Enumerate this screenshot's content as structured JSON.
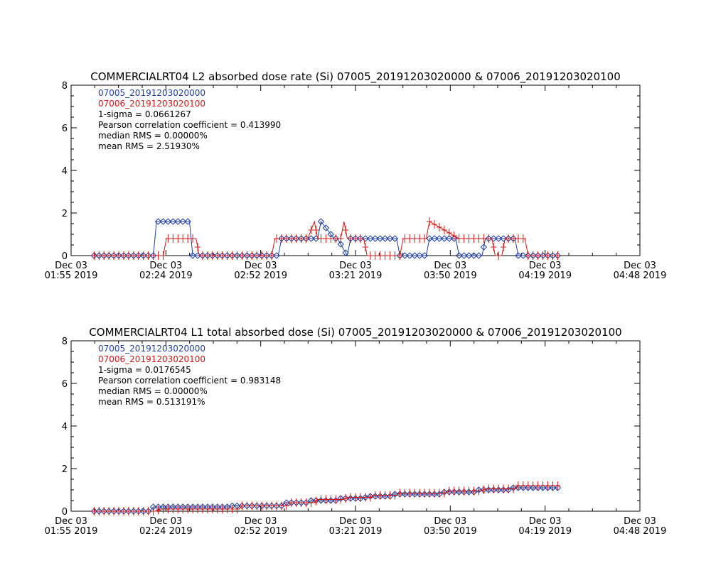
{
  "chart_data": [
    {
      "type": "line",
      "title": "COMMERCIALRT04 L2 absorbed dose rate (Si) 07005_20191203020000 & 07006_20191203020100",
      "xlabel": "",
      "ylabel": "",
      "xlim": [
        "2019-12-03 01:55",
        "2019-12-03 04:48"
      ],
      "ylim": [
        0,
        8
      ],
      "yticks": [
        "0",
        "2",
        "4",
        "6",
        "8"
      ],
      "xticks": [
        {
          "line1": "Dec 03",
          "line2": "01:55 2019"
        },
        {
          "line1": "Dec 03",
          "line2": "02:24 2019"
        },
        {
          "line1": "Dec 03",
          "line2": "02:52 2019"
        },
        {
          "line1": "Dec 03",
          "line2": "03:21 2019"
        },
        {
          "line1": "Dec 03",
          "line2": "03:50 2019"
        },
        {
          "line1": "Dec 03",
          "line2": "04:19 2019"
        },
        {
          "line1": "Dec 03",
          "line2": "04:48 2019"
        }
      ],
      "stats": [
        "1-sigma = 0.0661267",
        "Pearson correlation coefficient = 0.413990",
        "median RMS = 0.00000%",
        "mean RMS = 2.51930%"
      ],
      "series": [
        {
          "name": "07005_20191203020000",
          "color": "#1f3fa0",
          "marker": "diamond",
          "x": [
            "2019-12-03 02:02",
            "2019-12-03 02:20",
            "2019-12-03 02:21",
            "2019-12-03 02:31",
            "2019-12-03 02:32",
            "2019-12-03 02:58",
            "2019-12-03 02:59",
            "2019-12-03 03:10",
            "2019-12-03 03:11",
            "2019-12-03 03:15",
            "2019-12-03 03:16",
            "2019-12-03 03:19",
            "2019-12-03 03:20",
            "2019-12-03 03:34",
            "2019-12-03 03:35",
            "2019-12-03 03:43",
            "2019-12-03 03:44",
            "2019-12-03 03:52",
            "2019-12-03 03:53",
            "2019-12-03 04:00",
            "2019-12-03 04:01",
            "2019-12-03 04:10",
            "2019-12-03 04:11",
            "2019-12-03 04:23"
          ],
          "y": [
            0,
            0,
            1.6,
            1.6,
            0,
            0,
            0.8,
            0.8,
            1.6,
            0.8,
            0.8,
            0,
            0.8,
            0.8,
            0,
            0,
            0.8,
            0.8,
            0,
            0,
            0.8,
            0.8,
            0,
            0
          ]
        },
        {
          "name": "07006_20191203020100",
          "color": "#d01818",
          "marker": "plus",
          "x": [
            "2019-12-03 02:02",
            "2019-12-03 02:23",
            "2019-12-03 02:24",
            "2019-12-03 02:33",
            "2019-12-03 02:34",
            "2019-12-03 02:56",
            "2019-12-03 02:57",
            "2019-12-03 03:06",
            "2019-12-03 03:07",
            "2019-12-03 03:09",
            "2019-12-03 03:10",
            "2019-12-03 03:11",
            "2019-12-03 03:17",
            "2019-12-03 03:18",
            "2019-12-03 03:19",
            "2019-12-03 03:24",
            "2019-12-03 03:25",
            "2019-12-03 03:35",
            "2019-12-03 03:36",
            "2019-12-03 03:43",
            "2019-12-03 03:44",
            "2019-12-03 03:53",
            "2019-12-03 03:54",
            "2019-12-03 04:03",
            "2019-12-03 04:04",
            "2019-12-03 04:06",
            "2019-12-03 04:07",
            "2019-12-03 04:13",
            "2019-12-03 04:14",
            "2019-12-03 04:23"
          ],
          "y": [
            0,
            0,
            0.8,
            0.8,
            0,
            0,
            0.8,
            0.8,
            0.8,
            1.6,
            0.8,
            0.8,
            0.8,
            1.6,
            0.8,
            0.8,
            0,
            0,
            0.8,
            0.8,
            1.6,
            0.8,
            0.8,
            0.8,
            0,
            0,
            0.8,
            0.8,
            0,
            0
          ]
        }
      ]
    },
    {
      "type": "line",
      "title": "COMMERCIALRT04 L1 total absorbed dose (Si) 07005_20191203020000 & 07006_20191203020100",
      "xlabel": "",
      "ylabel": "",
      "xlim": [
        "2019-12-03 01:55",
        "2019-12-03 04:48"
      ],
      "ylim": [
        0,
        8
      ],
      "yticks": [
        "0",
        "2",
        "4",
        "6",
        "8"
      ],
      "xticks": [
        {
          "line1": "Dec 03",
          "line2": "01:55 2019"
        },
        {
          "line1": "Dec 03",
          "line2": "02:24 2019"
        },
        {
          "line1": "Dec 03",
          "line2": "02:52 2019"
        },
        {
          "line1": "Dec 03",
          "line2": "03:21 2019"
        },
        {
          "line1": "Dec 03",
          "line2": "03:50 2019"
        },
        {
          "line1": "Dec 03",
          "line2": "04:19 2019"
        },
        {
          "line1": "Dec 03",
          "line2": "04:48 2019"
        }
      ],
      "stats": [
        "1-sigma = 0.0176545",
        "Pearson correlation coefficient = 0.983148",
        "median RMS = 0.00000%",
        "mean RMS = 0.513191%"
      ],
      "series": [
        {
          "name": "07005_20191203020000",
          "color": "#1f3fa0",
          "marker": "diamond",
          "x": [
            "2019-12-03 02:02",
            "2019-12-03 02:19",
            "2019-12-03 02:20",
            "2019-12-03 02:43",
            "2019-12-03 02:44",
            "2019-12-03 02:59",
            "2019-12-03 03:00",
            "2019-12-03 03:07",
            "2019-12-03 03:08",
            "2019-12-03 03:16",
            "2019-12-03 03:17",
            "2019-12-03 03:24",
            "2019-12-03 03:25",
            "2019-12-03 03:32",
            "2019-12-03 03:33",
            "2019-12-03 03:47",
            "2019-12-03 03:48",
            "2019-12-03 03:58",
            "2019-12-03 03:59",
            "2019-12-03 04:08",
            "2019-12-03 04:09",
            "2019-12-03 04:23"
          ],
          "y": [
            0,
            0,
            0.2,
            0.2,
            0.25,
            0.25,
            0.4,
            0.4,
            0.5,
            0.5,
            0.6,
            0.6,
            0.7,
            0.7,
            0.8,
            0.8,
            0.9,
            0.9,
            1.0,
            1.0,
            1.1,
            1.1
          ]
        },
        {
          "name": "07006_20191203020100",
          "color": "#d01818",
          "marker": "plus",
          "x": [
            "2019-12-03 02:02",
            "2019-12-03 02:21",
            "2019-12-03 02:22",
            "2019-12-03 02:46",
            "2019-12-03 02:47",
            "2019-12-03 03:01",
            "2019-12-03 03:02",
            "2019-12-03 03:09",
            "2019-12-03 03:10",
            "2019-12-03 03:18",
            "2019-12-03 03:19",
            "2019-12-03 03:26",
            "2019-12-03 03:27",
            "2019-12-03 03:34",
            "2019-12-03 03:35",
            "2019-12-03 03:49",
            "2019-12-03 03:50",
            "2019-12-03 04:00",
            "2019-12-03 04:01",
            "2019-12-03 04:10",
            "2019-12-03 04:11",
            "2019-12-03 04:23"
          ],
          "y": [
            0,
            0,
            0.1,
            0.1,
            0.25,
            0.25,
            0.4,
            0.4,
            0.55,
            0.55,
            0.65,
            0.65,
            0.75,
            0.75,
            0.85,
            0.85,
            0.95,
            0.95,
            1.05,
            1.05,
            1.2,
            1.2
          ]
        }
      ]
    }
  ]
}
